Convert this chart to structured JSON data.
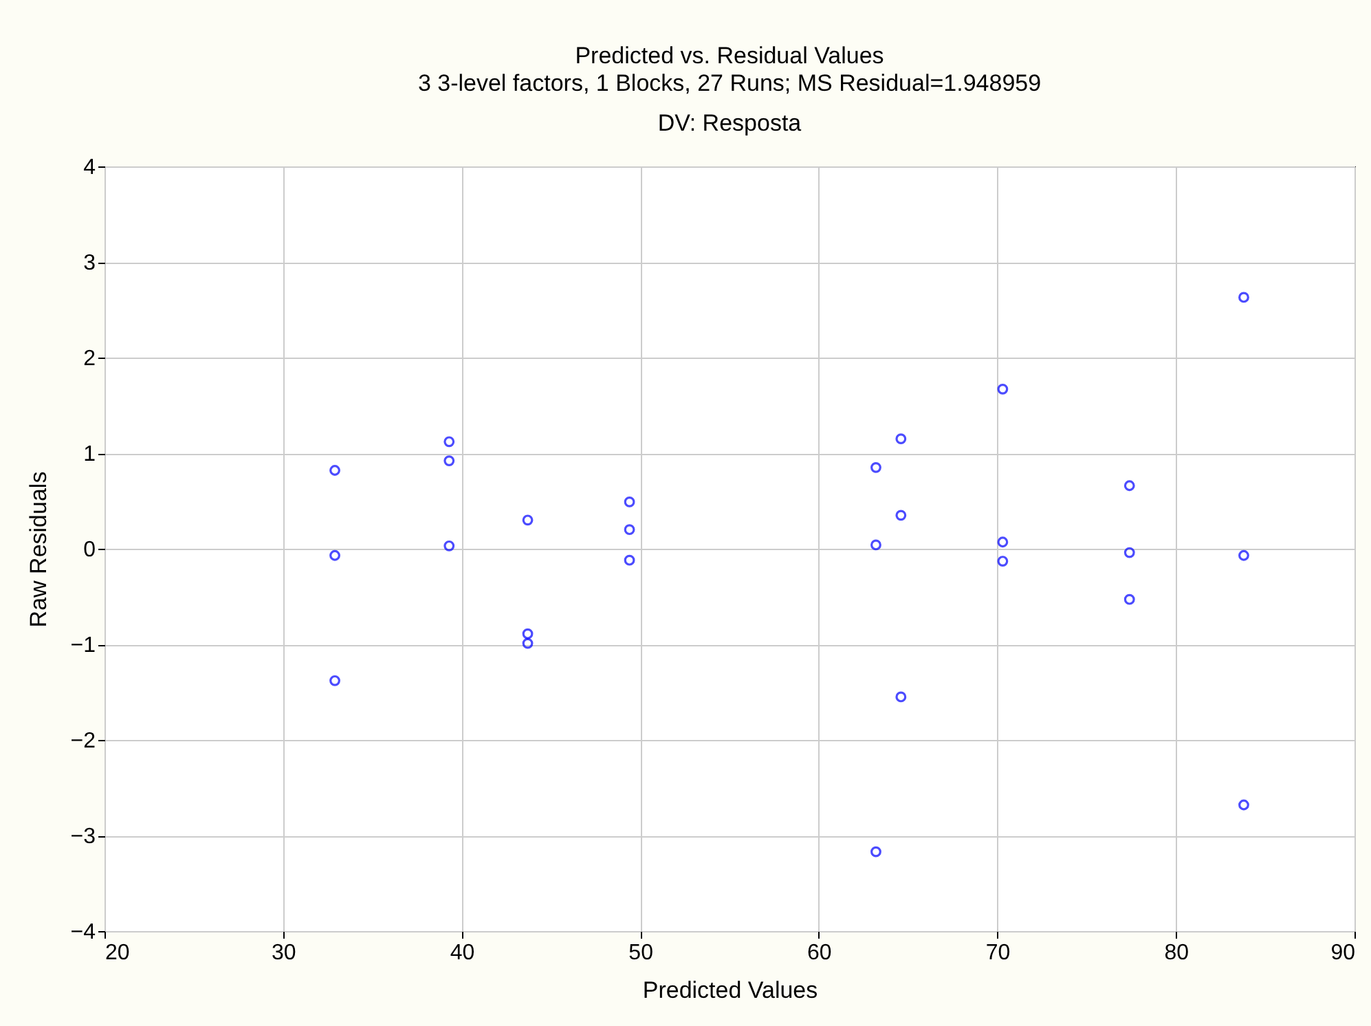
{
  "chart_data": {
    "type": "scatter",
    "title": "Predicted vs. Residual Values",
    "subtitle": "3 3-level factors, 1 Blocks, 27 Runs; MS Residual=1.948959\nDV: Resposta",
    "xlabel": "Predicted Values",
    "ylabel": "Raw Residuals",
    "x": [
      32.9,
      32.9,
      32.9,
      39.3,
      39.3,
      39.3,
      43.7,
      43.7,
      43.7,
      49.4,
      49.4,
      49.4,
      63.2,
      63.2,
      63.2,
      64.6,
      64.6,
      64.6,
      70.3,
      70.3,
      70.3,
      77.4,
      77.4,
      77.4,
      83.8,
      83.8,
      83.8
    ],
    "series": [
      {
        "color": "#0000ff",
        "values": [
          0.82,
          -0.07,
          -1.38,
          1.12,
          0.92,
          0.03,
          0.3,
          -0.89,
          -0.99,
          0.49,
          0.2,
          -0.12,
          0.85,
          0.04,
          -3.17,
          1.15,
          0.35,
          -1.55,
          1.67,
          0.07,
          -0.13,
          0.66,
          -0.04,
          -0.53,
          2.63,
          -0.07,
          -2.68
        ]
      }
    ],
    "xlim": [
      20,
      90
    ],
    "xticks": [
      20,
      30,
      40,
      50,
      60,
      70,
      80,
      90
    ],
    "ylim": [
      -4,
      4
    ],
    "yticks": [
      -4,
      -3,
      -2,
      -1,
      0,
      1,
      2,
      3,
      4
    ],
    "grid": true,
    "marker": "circle"
  }
}
